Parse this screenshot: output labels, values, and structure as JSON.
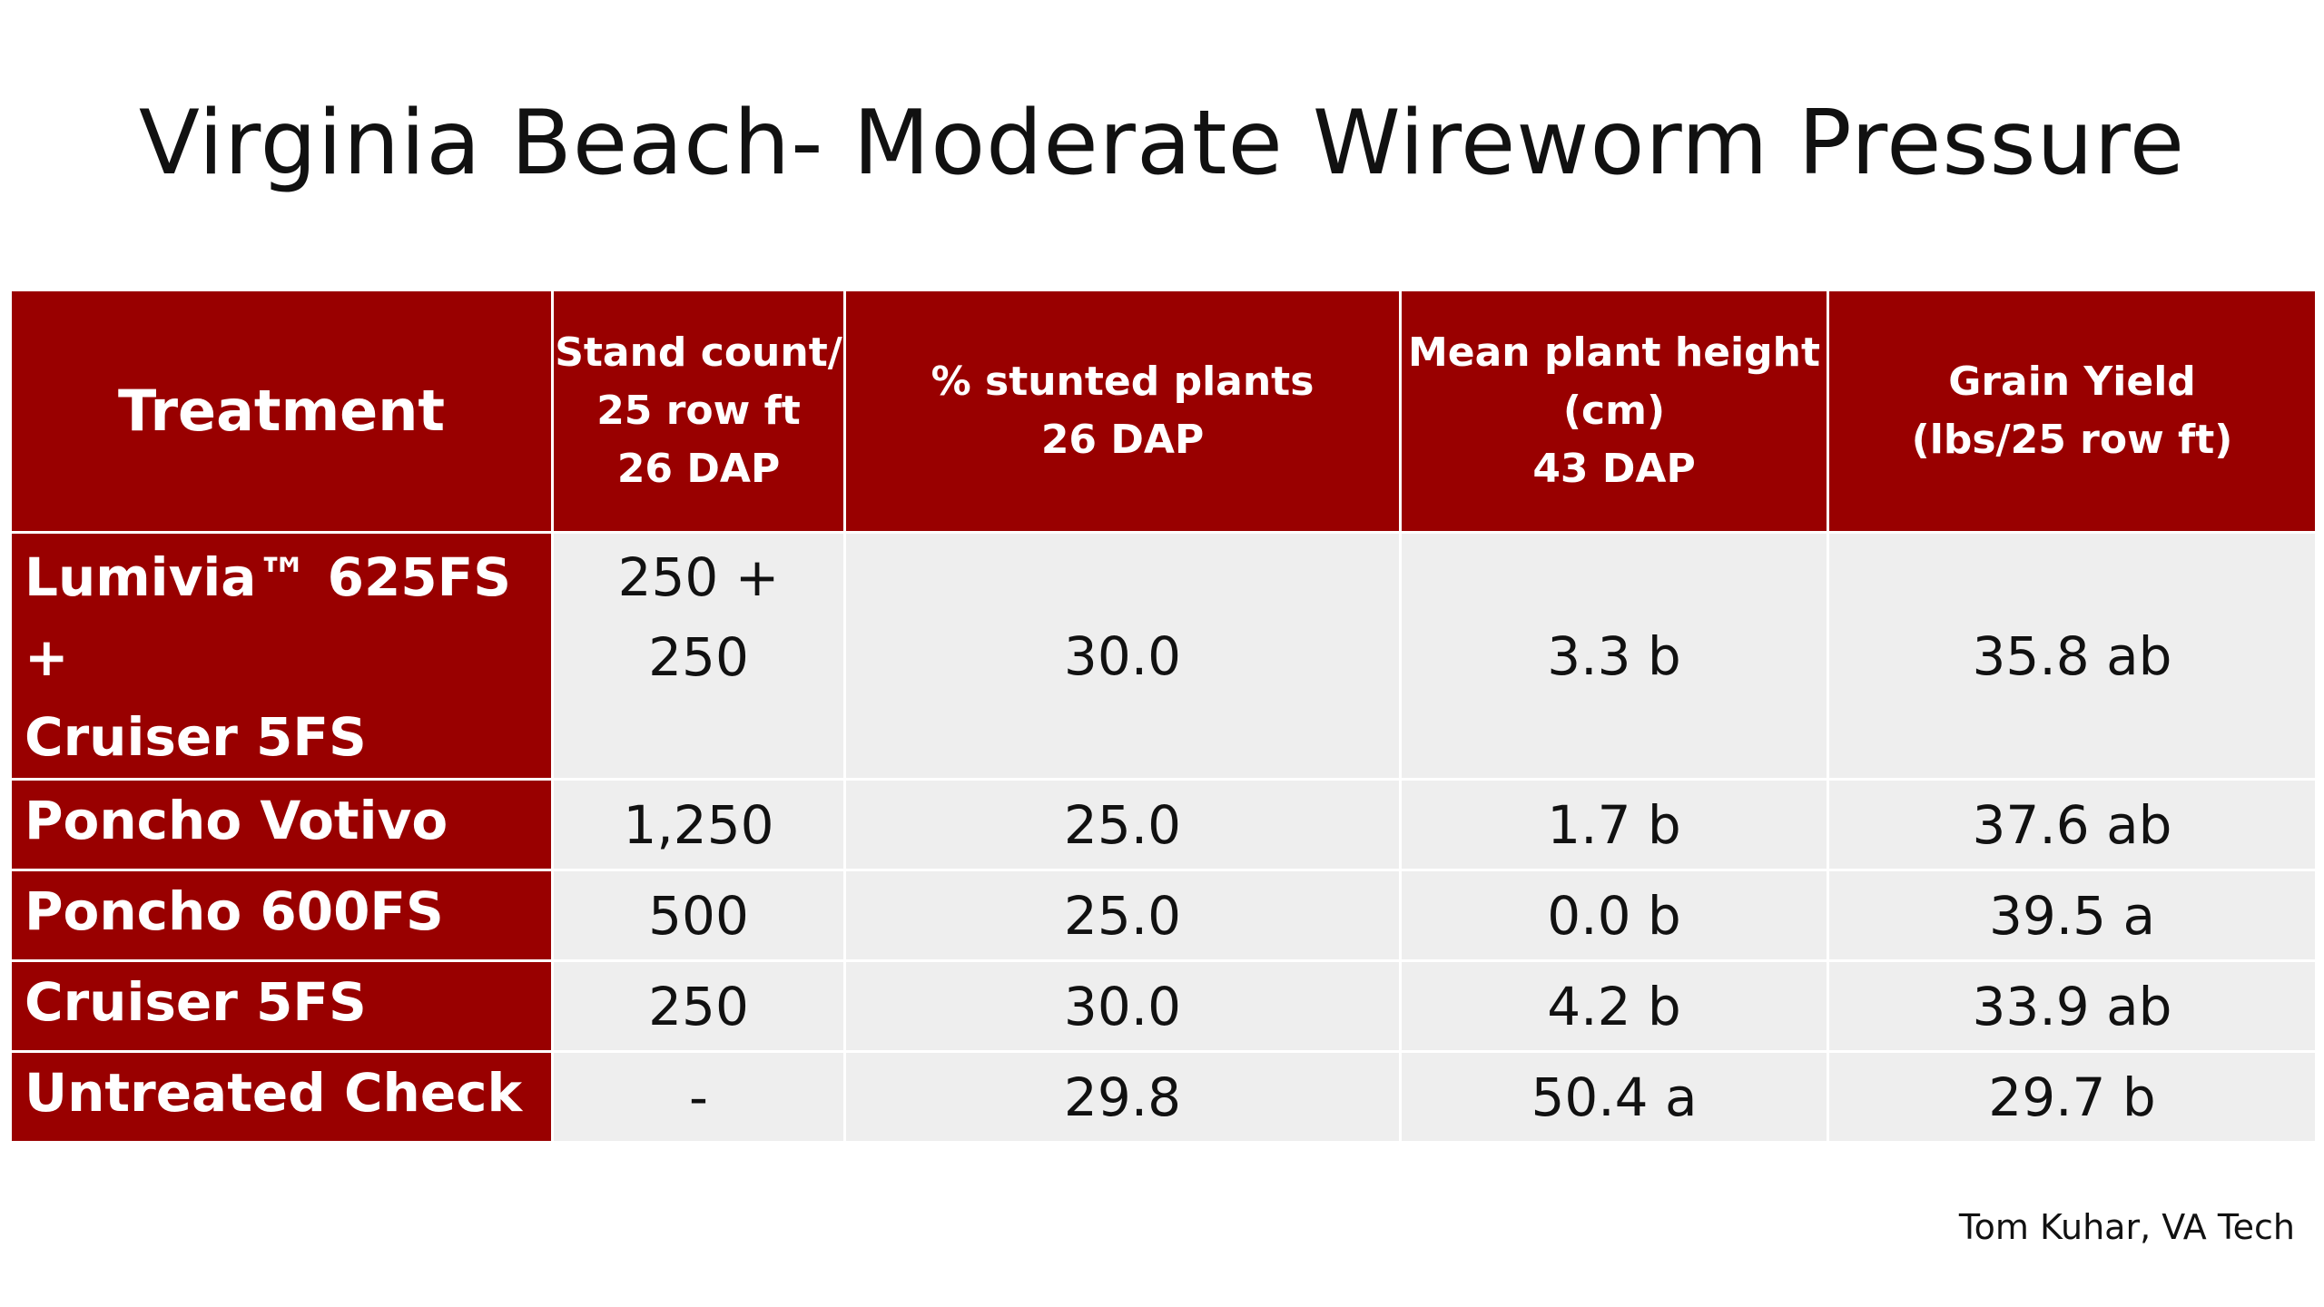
{
  "title": "Virginia Beach- Moderate Wireworm Pressure",
  "credit": "Tom Kuhar, VA Tech",
  "colors": {
    "header_bg": "#990000",
    "cell_bg": "#eeeeee",
    "text_light": "#ffffff",
    "text_dark": "#111111"
  },
  "table": {
    "headers": [
      "Treatment",
      "Stand count/\n25 row ft\n26 DAP",
      "% stunted plants\n26 DAP",
      "Mean plant height\n(cm)\n43 DAP",
      "Grain Yield\n(lbs/25 row ft)"
    ],
    "rows": [
      {
        "treatment": "Lumivia™  625FS +\nCruiser 5FS",
        "stand_count": "250 +\n250",
        "stunted": "30.0",
        "height": "3.3  b",
        "yield": "35.8 ab"
      },
      {
        "treatment": "Poncho Votivo",
        "stand_count": "1,250",
        "stunted": "25.0",
        "height": "1.7   b",
        "yield": "37.6 ab"
      },
      {
        "treatment": "Poncho 600FS",
        "stand_count": "500",
        "stunted": "25.0",
        "height": "0.0   b",
        "yield": "39.5 a"
      },
      {
        "treatment": "Cruiser 5FS",
        "stand_count": "250",
        "stunted": "30.0",
        "height": "4.2   b",
        "yield": "33.9 ab"
      },
      {
        "treatment": "Untreated Check",
        "stand_count": "-",
        "stunted": "29.8",
        "height": "50.4 a",
        "yield": "29.7 b"
      }
    ]
  }
}
